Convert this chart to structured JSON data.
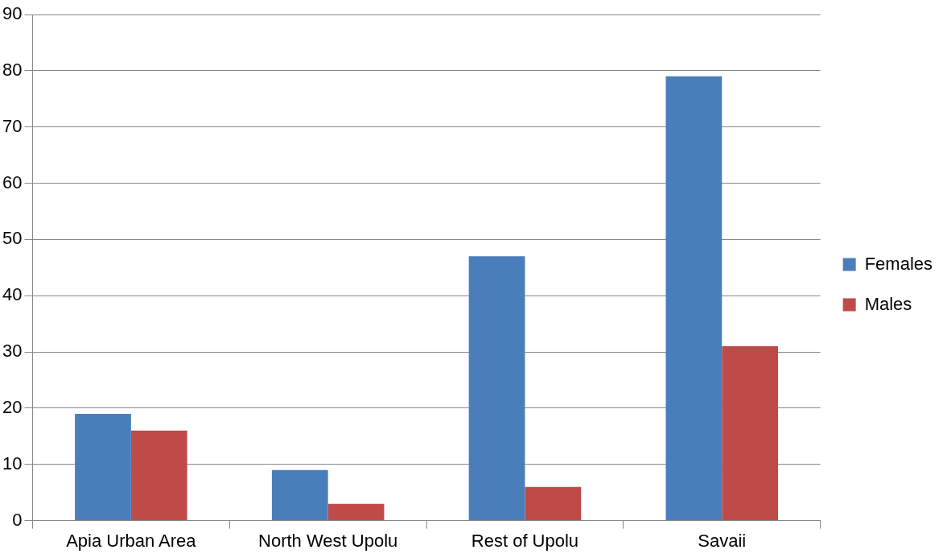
{
  "chart_data": {
    "type": "bar",
    "categories": [
      "Apia Urban Area",
      "North West Upolu",
      "Rest of Upolu",
      "Savaii"
    ],
    "series": [
      {
        "name": "Females",
        "color": "#4a7ebb",
        "values": [
          19,
          9,
          47,
          79
        ]
      },
      {
        "name": "Males",
        "color": "#be4b48",
        "values": [
          16,
          3,
          6,
          31
        ]
      }
    ],
    "ylim": [
      0,
      90
    ],
    "yticks": [
      0,
      10,
      20,
      30,
      40,
      50,
      60,
      70,
      80,
      90
    ],
    "grid": "y",
    "legend": "right"
  }
}
